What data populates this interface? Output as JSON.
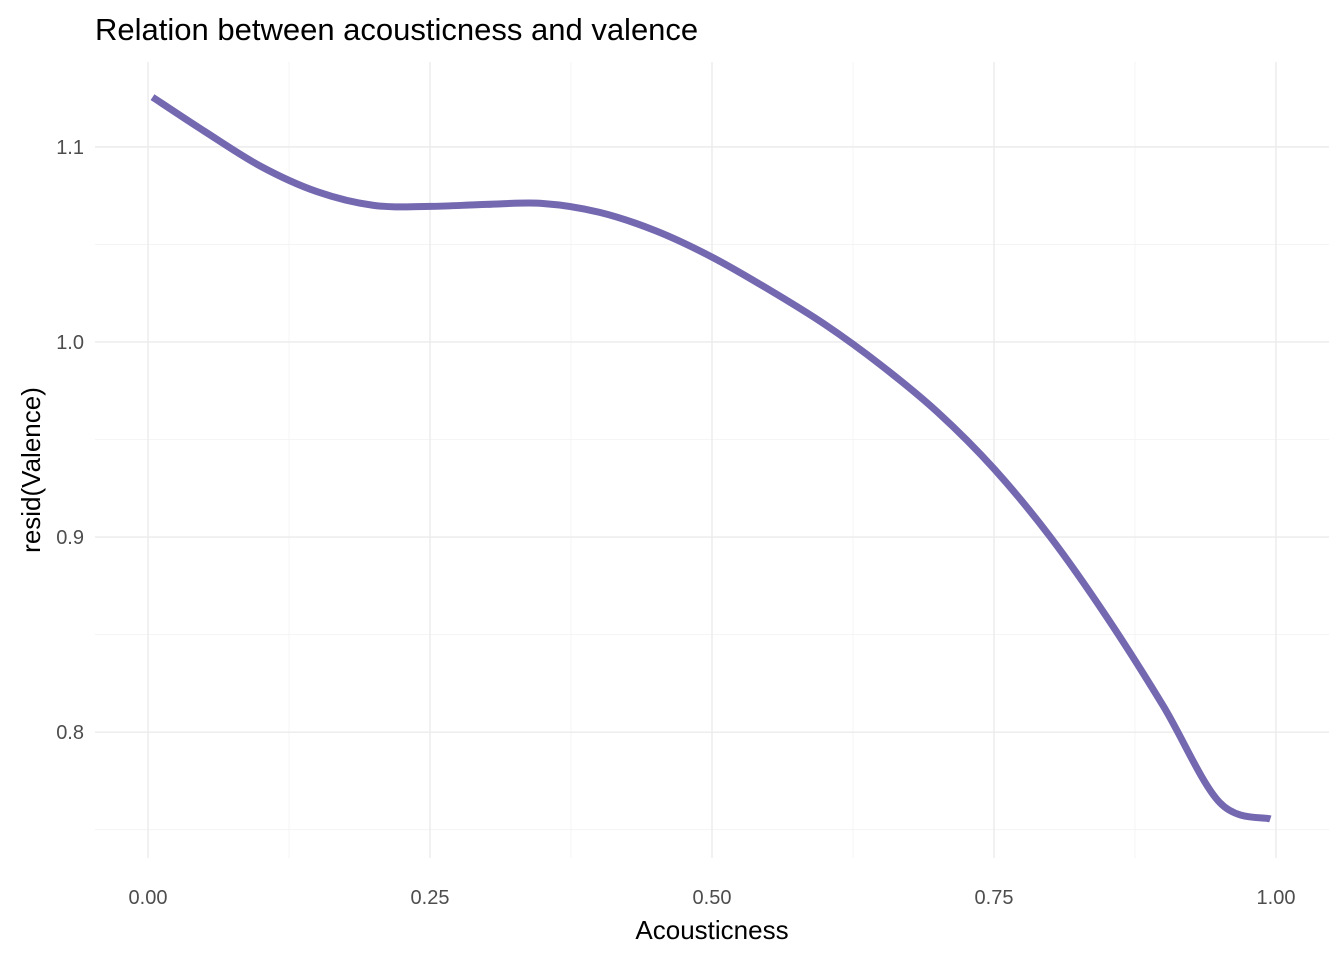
{
  "chart_data": {
    "type": "line",
    "title": "Relation between acousticness and valence",
    "xlabel": "Acousticness",
    "ylabel": "resid(Valence)",
    "xlim": [
      -0.047,
      1.047
    ],
    "ylim": [
      0.7355,
      1.1435
    ],
    "x_ticks": [
      0.0,
      0.25,
      0.5,
      0.75,
      1.0
    ],
    "x_tick_labels": [
      "0.00",
      "0.25",
      "0.50",
      "0.75",
      "1.00"
    ],
    "y_ticks": [
      0.8,
      0.9,
      1.0,
      1.1
    ],
    "y_tick_labels": [
      "0.8",
      "0.9",
      "1.0",
      "1.1"
    ],
    "grid": true,
    "colors": {
      "line": "#7468b0"
    },
    "series": [
      {
        "x": [
          0.004,
          0.05,
          0.1,
          0.15,
          0.2,
          0.25,
          0.3,
          0.35,
          0.4,
          0.45,
          0.5,
          0.55,
          0.6,
          0.65,
          0.7,
          0.75,
          0.8,
          0.85,
          0.9,
          0.95,
          0.995
        ],
        "values": [
          1.1255,
          1.108,
          1.09,
          1.077,
          1.07,
          1.0695,
          1.0705,
          1.071,
          1.0665,
          1.057,
          1.0435,
          1.027,
          1.009,
          0.988,
          0.964,
          0.935,
          0.9,
          0.859,
          0.8135,
          0.764,
          0.7555
        ]
      }
    ]
  }
}
